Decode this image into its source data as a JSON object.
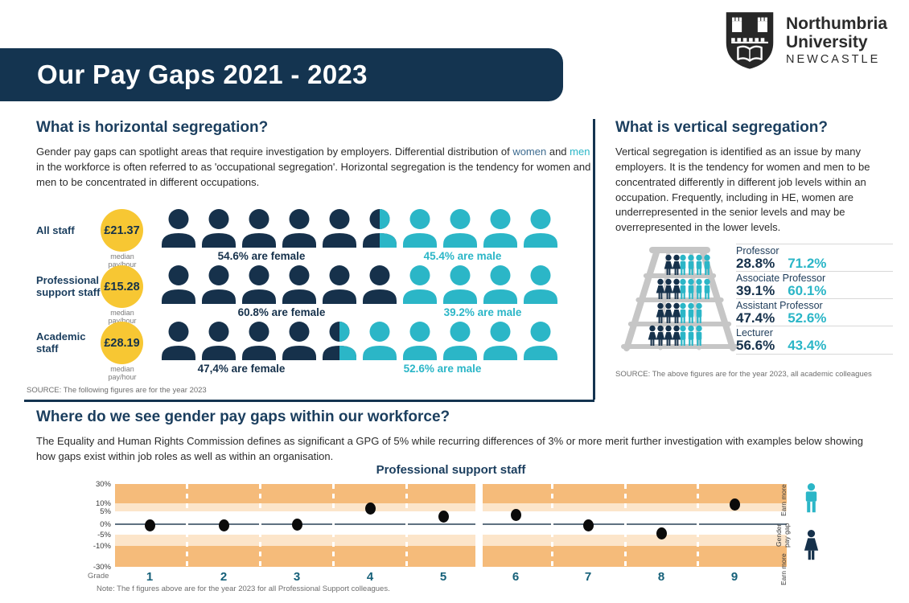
{
  "header": {
    "title": "Our Pay Gaps 2021 - 2023",
    "logo": {
      "line1": "Northumbria",
      "line2": "University",
      "line3": "NEWCASTLE"
    }
  },
  "horizontal": {
    "heading": "What is horizontal segregation?",
    "p1": "Gender pay gaps can spotlight areas that require investigation by employers. Differential distribution of ",
    "p_women": "women",
    "p2": " and ",
    "p_men": "men",
    "p3": " in the workforce is often referred to as 'occupational segregation'. Horizontal segregation is the tendency for women and men to be concentrated in different occupations.",
    "rows": [
      {
        "label": "All staff",
        "pay": "£21.37",
        "pay_caption": "median pay/hour",
        "female_label": "54.6% are female",
        "male_label": "45.4% are male",
        "female_icons": 5,
        "split_icons": 1,
        "male_icons": 4
      },
      {
        "label": "Professional support staff",
        "pay": "£15.28",
        "pay_caption": "median pay/hour",
        "female_label": "60.8% are female",
        "male_label": "39.2% are male",
        "female_icons": 6,
        "split_icons": 0,
        "male_icons": 4
      },
      {
        "label": "Academic staff",
        "pay": "£28.19",
        "pay_caption": "median pay/hour",
        "female_label": "47,4% are female",
        "male_label": "52.6% are male",
        "female_icons": 4,
        "split_icons": 1,
        "male_icons": 5
      }
    ],
    "source": "SOURCE: The following figures are for the year 2023"
  },
  "vertical": {
    "heading": "What is vertical segregation?",
    "paragraph": "Vertical segregation is identified as an issue by many employers. It is the tendency for women and men to be concentrated differently in different job levels within an occupation. Frequently, including in HE, women are underrepresented in the senior levels and may be overrepresented in the lower levels.",
    "levels": [
      {
        "role": "Professor",
        "female": "28.8%",
        "male": "71.2%"
      },
      {
        "role": "Associate Professor",
        "female": "39.1%",
        "male": "60.1%"
      },
      {
        "role": "Assistant Professor",
        "female": "47.4%",
        "male": "52.6%"
      },
      {
        "role": "Lecturer",
        "female": "56.6%",
        "male": "43.4%"
      }
    ],
    "ladder_figures": [
      {
        "female": 2,
        "male": 4
      },
      {
        "female": 3,
        "male": 4
      },
      {
        "female": 3,
        "male": 3
      },
      {
        "female": 4,
        "male": 3
      }
    ],
    "source": "SOURCE: The above figures are for the year 2023, all academic colleagues"
  },
  "bottom": {
    "heading": "Where do we see gender pay gaps within our workforce?",
    "paragraph": "The Equality and Human Rights Commission defines as significant a GPG of 5% while recurring differences of 3% or more merit further investigation with examples below showing how gaps exist within job roles as well as within an organisation.",
    "note": "Note: The f figures above are for the year 2023 for all Professional Support colleagues."
  },
  "chart_data": [
    {
      "type": "pictograph",
      "title": "Horizontal segregation by staff group",
      "categories": [
        "All staff",
        "Professional support staff",
        "Academic staff"
      ],
      "series": [
        {
          "name": "female",
          "values": [
            54.6,
            60.8,
            47.4
          ]
        },
        {
          "name": "male",
          "values": [
            45.4,
            39.2,
            52.6
          ]
        }
      ],
      "median_pay_per_hour": [
        "£21.37",
        "£15.28",
        "£28.19"
      ]
    },
    {
      "type": "bar",
      "title": "Vertical segregation by academic level",
      "categories": [
        "Professor",
        "Associate Professor",
        "Assistant Professor",
        "Lecturer"
      ],
      "series": [
        {
          "name": "female",
          "values": [
            28.8,
            39.1,
            47.4,
            56.6
          ]
        },
        {
          "name": "male",
          "values": [
            71.2,
            60.1,
            52.6,
            43.4
          ]
        }
      ]
    },
    {
      "type": "scatter",
      "title": "Professional support staff",
      "xlabel": "Grade",
      "categories": [
        1,
        2,
        3,
        4,
        5,
        6,
        7,
        8,
        9
      ],
      "values": [
        -0.5,
        -0.5,
        0,
        7,
        3,
        3.5,
        -0.5,
        -4.5,
        9.5
      ],
      "ylabel": "Gender pay gap",
      "ylim": [
        -30,
        30
      ],
      "y_tick_labels": [
        "30%",
        "10%",
        "5%",
        "0%",
        "-5%",
        "-10%",
        "-30%"
      ],
      "y_tick_values": [
        30,
        10,
        5,
        0,
        -5,
        -10,
        -30
      ],
      "bands": [
        {
          "from": 10,
          "to": 30,
          "color": "#f5bb7a"
        },
        {
          "from": 5,
          "to": 10,
          "color": "#fce5ca"
        },
        {
          "from": -10,
          "to": -5,
          "color": "#fce5ca"
        },
        {
          "from": -30,
          "to": -10,
          "color": "#f5bb7a"
        }
      ],
      "legend": {
        "top": "Earn more",
        "middle": "Gender pay gap",
        "bottom": "Earn more"
      }
    }
  ],
  "colors": {
    "navy": "#143450",
    "teal": "#2bb6c7",
    "yellow": "#f7c733",
    "band_dark": "#f5bb7a",
    "band_light": "#fce5ca",
    "women_word": "#3d6b90",
    "grade_number": "#156079"
  }
}
